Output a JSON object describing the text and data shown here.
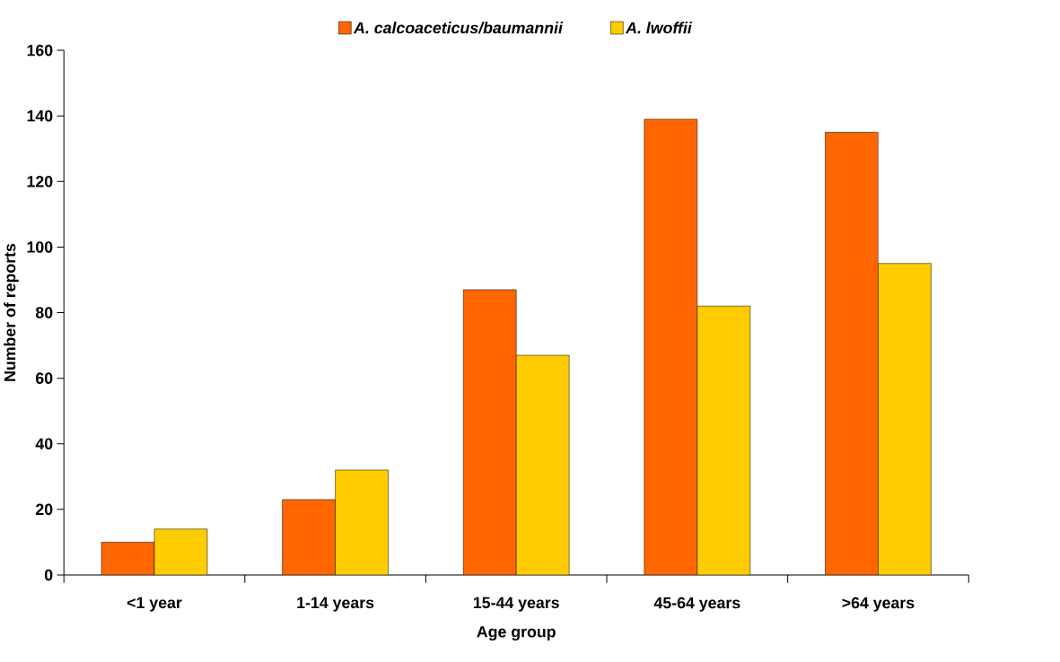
{
  "chart_data": {
    "type": "bar",
    "xlabel": "Age group",
    "ylabel": "Number of reports",
    "categories": [
      "<1 year",
      "1-14 years",
      "15-44 years",
      "45-64 years",
      ">64 years"
    ],
    "series": [
      {
        "name": "A. calcoaceticus/baumannii",
        "color": "#ff6600",
        "values": [
          10,
          23,
          87,
          139,
          135
        ]
      },
      {
        "name": "A. lwoffii",
        "color": "#ffcc00",
        "values": [
          14,
          32,
          67,
          82,
          95
        ]
      }
    ],
    "ylim": [
      0,
      160
    ],
    "yticks": [
      0,
      20,
      40,
      60,
      80,
      100,
      120,
      140,
      160
    ],
    "legend": "top"
  }
}
